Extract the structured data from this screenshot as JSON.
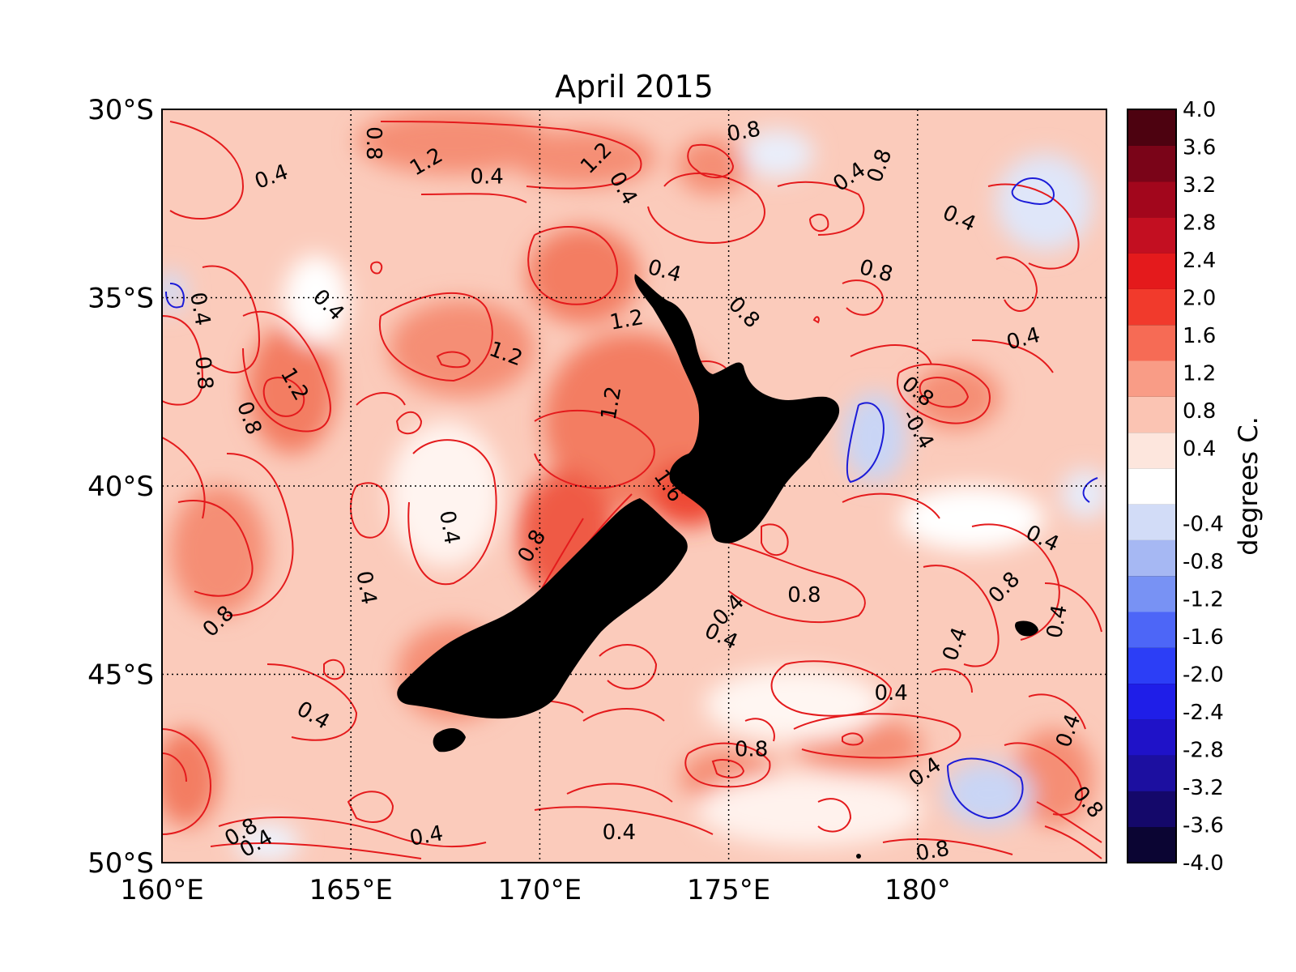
{
  "title": "April 2015",
  "colorbar": {
    "label": "degrees C.",
    "ticks": [
      "4.0",
      "3.6",
      "3.2",
      "2.8",
      "2.4",
      "2.0",
      "1.6",
      "1.2",
      "0.8",
      "0.4",
      "",
      "-0.4",
      "-0.8",
      "-1.2",
      "-1.6",
      "-2.0",
      "-2.4",
      "-2.8",
      "-3.2",
      "-3.6",
      "-4.0"
    ],
    "range": [
      -4.0,
      4.0
    ],
    "colors": [
      "#0b0533",
      "#14086a",
      "#1c0fa0",
      "#1f12c8",
      "#1f1ee8",
      "#2c3ef6",
      "#4d66f7",
      "#7892f4",
      "#a6b8f3",
      "#d2dcf7",
      "#ffffff",
      "#fde6dd",
      "#fbc4b3",
      "#f99c86",
      "#f66b55",
      "#f13a2c",
      "#e41a1c",
      "#c30f21",
      "#a2061c",
      "#7a0418",
      "#4d0210"
    ]
  },
  "axes": {
    "x_ticks": [
      "160°E",
      "165°E",
      "170°E",
      "175°E",
      "180°"
    ],
    "y_ticks": [
      "30°S",
      "35°S",
      "40°S",
      "45°S",
      "50°S"
    ],
    "lon_range": [
      160,
      185
    ],
    "lat_range": [
      -50,
      -30
    ],
    "grid": "dotted"
  },
  "contour_labels": [
    {
      "text": "0.4",
      "lon": 162.9,
      "lat": -31.8,
      "rot": -20
    },
    {
      "text": "0.8",
      "lon": 165.6,
      "lat": -30.9,
      "rot": 90
    },
    {
      "text": "1.2",
      "lon": 167.0,
      "lat": -31.4,
      "rot": -30
    },
    {
      "text": "0.4",
      "lon": 168.6,
      "lat": -31.8,
      "rot": 0
    },
    {
      "text": "1.2",
      "lon": 171.5,
      "lat": -31.3,
      "rot": -45
    },
    {
      "text": "0.4",
      "lon": 172.2,
      "lat": -32.1,
      "rot": 60
    },
    {
      "text": "0.8",
      "lon": 175.4,
      "lat": -30.6,
      "rot": -10
    },
    {
      "text": "0.4",
      "lon": 178.2,
      "lat": -31.8,
      "rot": -35
    },
    {
      "text": "0.8",
      "lon": 179.0,
      "lat": -31.5,
      "rot": -70
    },
    {
      "text": "0.4",
      "lon": 181.1,
      "lat": -32.9,
      "rot": 25
    },
    {
      "text": "0.8",
      "lon": 178.9,
      "lat": -34.3,
      "rot": 15
    },
    {
      "text": "0.4",
      "lon": 173.3,
      "lat": -34.3,
      "rot": 15
    },
    {
      "text": "0.4",
      "lon": 161.0,
      "lat": -35.3,
      "rot": 80
    },
    {
      "text": "0.4",
      "lon": 164.4,
      "lat": -35.2,
      "rot": 45
    },
    {
      "text": "0.8",
      "lon": 161.1,
      "lat": -37.0,
      "rot": 85
    },
    {
      "text": "1.2",
      "lon": 163.5,
      "lat": -37.3,
      "rot": 60
    },
    {
      "text": "0.8",
      "lon": 162.3,
      "lat": -38.2,
      "rot": 70
    },
    {
      "text": "1.2",
      "lon": 169.1,
      "lat": -36.5,
      "rot": 20
    },
    {
      "text": "1.2",
      "lon": 172.3,
      "lat": -35.6,
      "rot": -10
    },
    {
      "text": "1.2",
      "lon": 171.9,
      "lat": -37.8,
      "rot": -80
    },
    {
      "text": "0.8",
      "lon": 175.4,
      "lat": -35.4,
      "rot": 45
    },
    {
      "text": "0.4",
      "lon": 182.8,
      "lat": -36.1,
      "rot": -15
    },
    {
      "text": "0.8",
      "lon": 180.0,
      "lat": -37.5,
      "rot": 40
    },
    {
      "text": "-0.4",
      "lon": 180.0,
      "lat": -38.5,
      "rot": 60
    },
    {
      "text": "1.6",
      "lon": 173.4,
      "lat": -40.0,
      "rot": 55
    },
    {
      "text": "0.4",
      "lon": 167.6,
      "lat": -41.1,
      "rot": 80
    },
    {
      "text": "0.8",
      "lon": 169.8,
      "lat": -41.6,
      "rot": -60
    },
    {
      "text": "0.4",
      "lon": 165.4,
      "lat": -42.7,
      "rot": 80
    },
    {
      "text": "0.8",
      "lon": 161.5,
      "lat": -43.6,
      "rot": -45
    },
    {
      "text": "0.4",
      "lon": 175.0,
      "lat": -43.3,
      "rot": -45
    },
    {
      "text": "0.8",
      "lon": 177.0,
      "lat": -42.9,
      "rot": 0
    },
    {
      "text": "0.4",
      "lon": 174.8,
      "lat": -44.0,
      "rot": 25
    },
    {
      "text": "0.4",
      "lon": 183.3,
      "lat": -41.4,
      "rot": 25
    },
    {
      "text": "0.8",
      "lon": 182.3,
      "lat": -42.7,
      "rot": -45
    },
    {
      "text": "0.4",
      "lon": 183.7,
      "lat": -43.6,
      "rot": -80
    },
    {
      "text": "0.4",
      "lon": 181.0,
      "lat": -44.2,
      "rot": -70
    },
    {
      "text": "0.4",
      "lon": 164.0,
      "lat": -46.1,
      "rot": 30
    },
    {
      "text": "0.4",
      "lon": 179.3,
      "lat": -45.5,
      "rot": 0
    },
    {
      "text": "0.8",
      "lon": 175.6,
      "lat": -47.0,
      "rot": 0
    },
    {
      "text": "0.4",
      "lon": 180.2,
      "lat": -47.6,
      "rot": -35
    },
    {
      "text": "0.4",
      "lon": 184.0,
      "lat": -46.5,
      "rot": -70
    },
    {
      "text": "0.8",
      "lon": 184.5,
      "lat": -48.4,
      "rot": 50
    },
    {
      "text": "0.8",
      "lon": 162.1,
      "lat": -49.2,
      "rot": -30
    },
    {
      "text": "0.4",
      "lon": 162.5,
      "lat": -49.5,
      "rot": -30
    },
    {
      "text": "0.4",
      "lon": 167.0,
      "lat": -49.3,
      "rot": -10
    },
    {
      "text": "0.4",
      "lon": 172.1,
      "lat": -49.2,
      "rot": 0
    },
    {
      "text": "0.8",
      "lon": 180.4,
      "lat": -49.7,
      "rot": -10
    }
  ]
}
